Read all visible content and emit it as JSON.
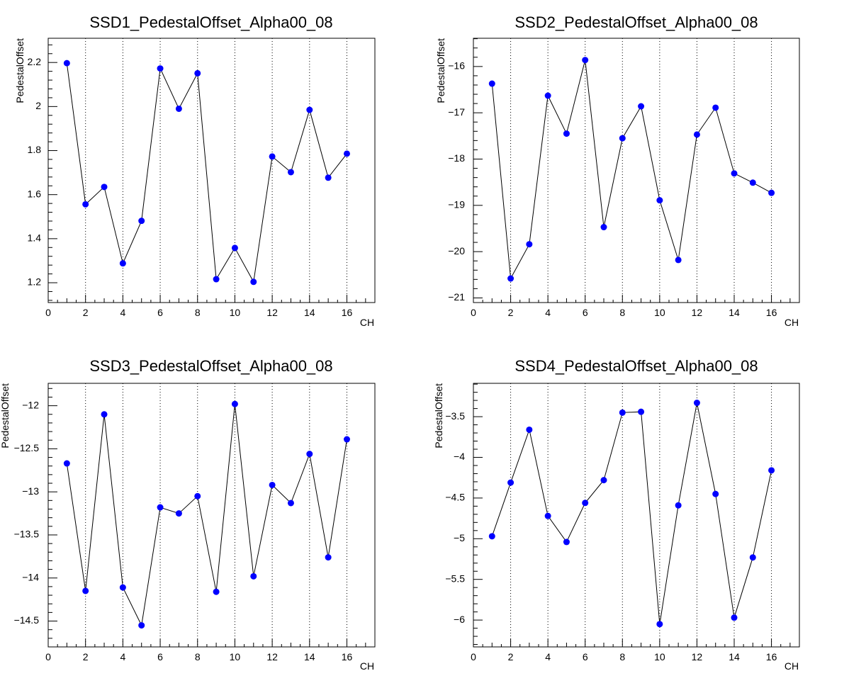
{
  "chart_data": [
    {
      "type": "line",
      "title": "SSD1_PedestalOffset_Alpha00_08",
      "xlabel": "CH",
      "ylabel": "PedestalOffset",
      "xlim": [
        0,
        17.5
      ],
      "ylim": [
        1.11,
        2.31
      ],
      "xticks": [
        0,
        2,
        4,
        6,
        8,
        10,
        12,
        14,
        16
      ],
      "yticks": [
        1.2,
        1.4,
        1.6,
        1.8,
        2,
        2.2
      ],
      "ytick_labels": [
        "1.2",
        "1.4",
        "1.6",
        "1.8",
        "2",
        "2.2"
      ],
      "grid": "vertical dotted at even x",
      "marker_color": "#0000ff",
      "line_color": "#000000",
      "x": [
        1,
        2,
        3,
        4,
        5,
        6,
        7,
        8,
        9,
        10,
        11,
        12,
        13,
        14,
        15,
        16
      ],
      "y": [
        2.197,
        1.556,
        1.635,
        1.288,
        1.481,
        2.173,
        1.99,
        2.151,
        1.216,
        1.358,
        1.204,
        1.773,
        1.702,
        1.985,
        1.677,
        1.786
      ]
    },
    {
      "type": "line",
      "title": "SSD2_PedestalOffset_Alpha00_08",
      "xlabel": "CH",
      "ylabel": "PedestalOffset",
      "xlim": [
        0,
        17.5
      ],
      "ylim": [
        -21.1,
        -15.39
      ],
      "xticks": [
        0,
        2,
        4,
        6,
        8,
        10,
        12,
        14,
        16
      ],
      "yticks": [
        -21,
        -20,
        -19,
        -18,
        -17,
        -16
      ],
      "ytick_labels": [
        "−21",
        "−20",
        "−19",
        "−18",
        "−17",
        "−16"
      ],
      "grid": "vertical dotted at even x",
      "marker_color": "#0000ff",
      "line_color": "#000000",
      "x": [
        1,
        2,
        3,
        4,
        5,
        6,
        7,
        8,
        9,
        10,
        11,
        12,
        13,
        14,
        15,
        16
      ],
      "y": [
        -16.37,
        -20.58,
        -19.84,
        -16.63,
        -17.45,
        -15.86,
        -19.47,
        -17.55,
        -16.86,
        -18.89,
        -20.18,
        -17.47,
        -16.89,
        -18.31,
        -18.51,
        -18.73
      ]
    },
    {
      "type": "line",
      "title": "SSD3_PedestalOffset_Alpha00_08",
      "xlabel": "CH",
      "ylabel": "PedestalOffset",
      "xlim": [
        0,
        17.5
      ],
      "ylim": [
        -14.8,
        -11.74
      ],
      "xticks": [
        0,
        2,
        4,
        6,
        8,
        10,
        12,
        14,
        16
      ],
      "yticks": [
        -14.5,
        -14,
        -13.5,
        -13,
        -12.5,
        -12
      ],
      "ytick_labels": [
        "−14.5",
        "−14",
        "−13.5",
        "−13",
        "−12.5",
        "−12"
      ],
      "grid": "vertical dotted at even x",
      "marker_color": "#0000ff",
      "line_color": "#000000",
      "x": [
        1,
        2,
        3,
        4,
        5,
        6,
        7,
        8,
        9,
        10,
        11,
        12,
        13,
        14,
        15,
        16
      ],
      "y": [
        -12.67,
        -14.15,
        -12.1,
        -14.11,
        -14.55,
        -13.18,
        -13.25,
        -13.05,
        -14.16,
        -11.98,
        -13.98,
        -12.92,
        -13.13,
        -12.56,
        -13.76,
        -12.39
      ]
    },
    {
      "type": "line",
      "title": "SSD4_PedestalOffset_Alpha00_08",
      "xlabel": "CH",
      "ylabel": "PedestalOffset",
      "xlim": [
        0,
        17.5
      ],
      "ylim": [
        -6.33,
        -3.09
      ],
      "xticks": [
        0,
        2,
        4,
        6,
        8,
        10,
        12,
        14,
        16
      ],
      "yticks": [
        -6,
        -5.5,
        -5,
        -4.5,
        -4,
        -3.5
      ],
      "ytick_labels": [
        "−6",
        "−5.5",
        "−5",
        "−4.5",
        "−4",
        "−3.5"
      ],
      "grid": "vertical dotted at even x",
      "marker_color": "#0000ff",
      "line_color": "#000000",
      "x": [
        1,
        2,
        3,
        4,
        5,
        6,
        7,
        8,
        9,
        10,
        11,
        12,
        13,
        14,
        15,
        16
      ],
      "y": [
        -4.97,
        -4.31,
        -3.66,
        -4.72,
        -5.04,
        -4.56,
        -4.28,
        -3.45,
        -3.44,
        -6.05,
        -4.59,
        -3.33,
        -4.45,
        -5.97,
        -5.23,
        -4.16
      ]
    }
  ]
}
